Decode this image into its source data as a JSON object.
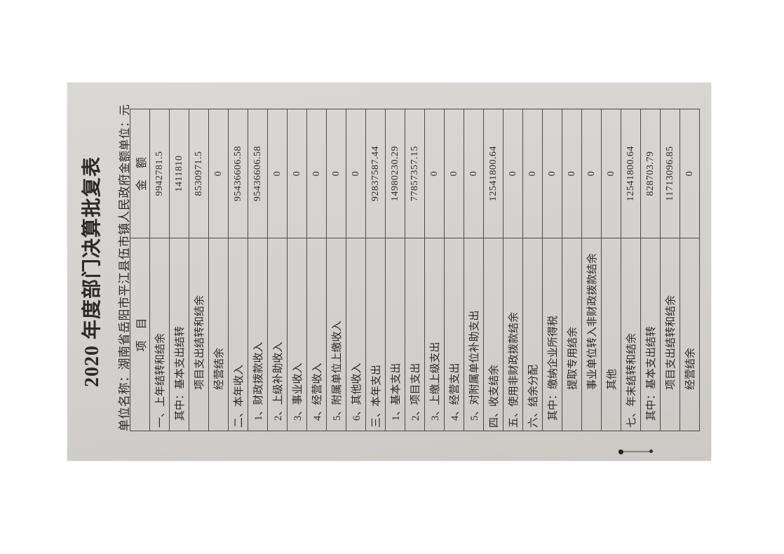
{
  "page": {
    "title": "2020 年度部门决算批复表",
    "unit_name": "单位名称：湖南省岳阳市平江县伍市镇人民政府",
    "amount_unit": "金额单位：元"
  },
  "table": {
    "col_item": "项 目",
    "col_amount": "金 额",
    "rows": [
      {
        "label": "一、上年结转和结余",
        "value": "9942781.5",
        "indent": 0
      },
      {
        "label": "其中：基本支出结转",
        "value": "1411810",
        "indent": 1
      },
      {
        "label": "项目支出结转和结余",
        "value": "8530971.5",
        "indent": 2
      },
      {
        "label": "经营结余",
        "value": "0",
        "indent": 2
      },
      {
        "label": "二、本年收入",
        "value": "95436606.58",
        "indent": 0
      },
      {
        "label": "1、财政拨款收入",
        "value": "95436606.58",
        "indent": 1
      },
      {
        "label": "2、上级补助收入",
        "value": "0",
        "indent": 1
      },
      {
        "label": "3、事业收入",
        "value": "0",
        "indent": 1
      },
      {
        "label": "4、经营收入",
        "value": "0",
        "indent": 1
      },
      {
        "label": "5、附属单位上缴收入",
        "value": "0",
        "indent": 1
      },
      {
        "label": "6、其他收入",
        "value": "0",
        "indent": 1
      },
      {
        "label": "三、本年支出",
        "value": "92837587.44",
        "indent": 0
      },
      {
        "label": "1、基本支出",
        "value": "14980230.29",
        "indent": 1
      },
      {
        "label": "2、项目支出",
        "value": "77857357.15",
        "indent": 1
      },
      {
        "label": "3、上缴上级支出",
        "value": "0",
        "indent": 1
      },
      {
        "label": "4、经营支出",
        "value": "0",
        "indent": 1
      },
      {
        "label": "5、对附属单位补助支出",
        "value": "0",
        "indent": 1
      },
      {
        "label": "四、收支结余",
        "value": "12541800.64",
        "indent": 0
      },
      {
        "label": "五、使用非财政拨款结余",
        "value": "0",
        "indent": 0
      },
      {
        "label": "六、结余分配",
        "value": "0",
        "indent": 0
      },
      {
        "label": "其中：缴纳企业所得税",
        "value": "0",
        "indent": 1
      },
      {
        "label": "提取专用结余",
        "value": "0",
        "indent": 2
      },
      {
        "label": "事业单位转入非财政拨款结余",
        "value": "0",
        "indent": 2
      },
      {
        "label": "其他",
        "value": "0",
        "indent": 2
      },
      {
        "label": "七、年末结转和结余",
        "value": "12541800.64",
        "indent": 0
      },
      {
        "label": "其中：基本支出结转",
        "value": "828703.79",
        "indent": 1
      },
      {
        "label": "项目支出结转和结余",
        "value": "11713096.85",
        "indent": 2
      },
      {
        "label": "经营结余",
        "value": "0",
        "indent": 2
      }
    ]
  },
  "colors": {
    "background": "#ffffff",
    "paper_light": "#dad8d5",
    "paper_mid": "#d3d1ce",
    "paper_dark": "#ccc9c5",
    "grid_line": "#4a4a47",
    "ink": "#2b2a28"
  }
}
